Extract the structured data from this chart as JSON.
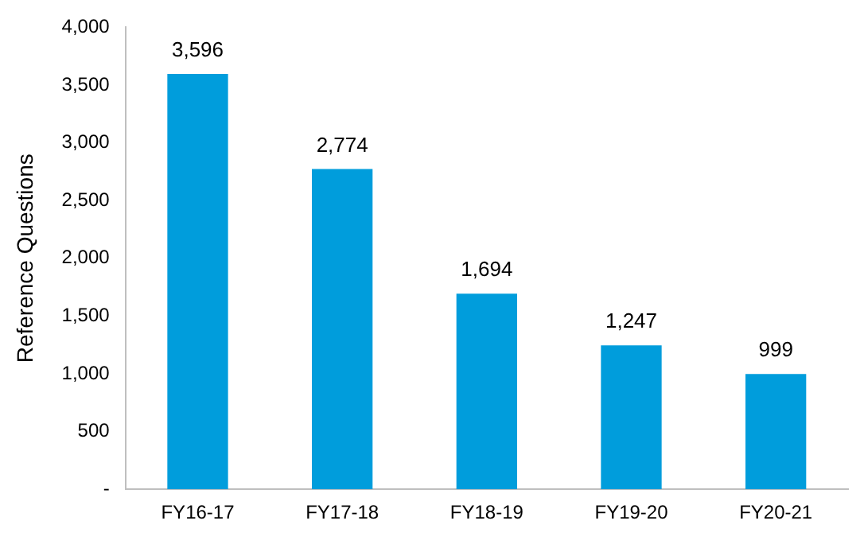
{
  "chart_data": {
    "type": "bar",
    "ylabel": "Reference Questions",
    "categories": [
      "FY16-17",
      "FY17-18",
      "FY18-19",
      "FY19-20",
      "FY20-21"
    ],
    "values": [
      3596,
      2774,
      1694,
      1247,
      999
    ],
    "color": "#009ddc",
    "value_labels": [
      "3,596",
      "2,774",
      "1,694",
      "1,247",
      "999"
    ],
    "grid": false,
    "legend": false,
    "ylim": [
      0,
      4000
    ],
    "yticks": [
      {
        "value": 0,
        "label": "-"
      },
      500,
      {
        "value": 1000,
        "label": "1,000"
      },
      {
        "value": 1500,
        "label": "1,500"
      },
      {
        "value": 2000,
        "label": "2,000"
      },
      {
        "value": 2500,
        "label": "2,500"
      },
      {
        "value": 3000,
        "label": "3,000"
      },
      {
        "value": 3500,
        "label": "3,500"
      },
      {
        "value": 4000,
        "label": "4,000"
      }
    ]
  }
}
